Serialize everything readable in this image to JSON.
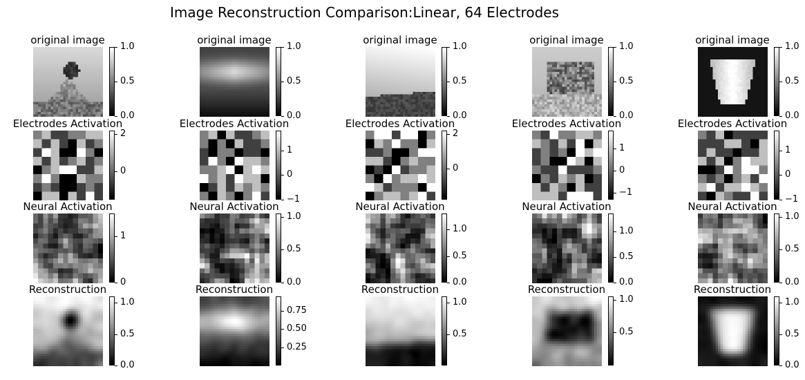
{
  "title": "Image Reconstruction Comparison:Linear, 64 Electrodes",
  "colormap": {
    "low": "#000000",
    "high": "#ffffff"
  },
  "chart_data": {
    "type": "heatmap",
    "row_titles": [
      "original image",
      "Electrodes Activation",
      "Neural Activation",
      "Reconstruction"
    ],
    "grid_sizes": [
      28,
      8,
      14,
      28
    ],
    "columns": 5,
    "panels": [
      [
        {
          "vmin": 0.0,
          "vmax": 1.0,
          "ticks": [
            0.0,
            0.5,
            1.0
          ],
          "tick_labels": [
            "0.0",
            "0.5",
            "1.0"
          ]
        },
        {
          "vmin": 0.0,
          "vmax": 1.0,
          "ticks": [
            0.0,
            0.5,
            1.0
          ],
          "tick_labels": [
            "0.0",
            "0.5",
            "1.0"
          ]
        },
        {
          "vmin": 0.0,
          "vmax": 1.0,
          "ticks": [
            0.0,
            0.5,
            1.0
          ],
          "tick_labels": [
            "0.0",
            "0.5",
            "1.0"
          ]
        },
        {
          "vmin": 0.0,
          "vmax": 1.0,
          "ticks": [
            0.0,
            0.5,
            1.0
          ],
          "tick_labels": [
            "0.0",
            "0.5",
            "1.0"
          ]
        },
        {
          "vmin": 0.0,
          "vmax": 1.0,
          "ticks": [
            0.0,
            0.5,
            1.0
          ],
          "tick_labels": [
            "0.0",
            "0.5",
            "1.0"
          ]
        }
      ],
      [
        {
          "vmin": -1.5,
          "vmax": 2.2,
          "ticks": [
            0,
            2
          ],
          "tick_labels": [
            "0",
            "2"
          ]
        },
        {
          "vmin": -1.0,
          "vmax": 1.8,
          "ticks": [
            -1,
            0,
            1
          ],
          "tick_labels": [
            "−1",
            "0",
            "1"
          ]
        },
        {
          "vmin": -1.8,
          "vmax": 2.2,
          "ticks": [
            0,
            2
          ],
          "tick_labels": [
            "0",
            "2"
          ]
        },
        {
          "vmin": -1.3,
          "vmax": 1.8,
          "ticks": [
            -1,
            0,
            1
          ],
          "tick_labels": [
            "−1",
            "0",
            "1"
          ]
        },
        {
          "vmin": -1.0,
          "vmax": 1.8,
          "ticks": [
            -1,
            0,
            1
          ],
          "tick_labels": [
            "−1",
            "0",
            "1"
          ]
        }
      ],
      [
        {
          "vmin": 0.0,
          "vmax": 1.5,
          "ticks": [
            0,
            1
          ],
          "tick_labels": [
            "0",
            "1"
          ]
        },
        {
          "vmin": 0.0,
          "vmax": 1.05,
          "ticks": [
            0.0,
            0.5,
            1.0
          ],
          "tick_labels": [
            "0.0",
            "0.5",
            "1.0"
          ]
        },
        {
          "vmin": 0.0,
          "vmax": 1.3,
          "ticks": [
            0.0,
            0.5,
            1.0
          ],
          "tick_labels": [
            "0.0",
            "0.5",
            "1.0"
          ]
        },
        {
          "vmin": 0.0,
          "vmax": 1.35,
          "ticks": [
            0.0,
            0.5,
            1.0
          ],
          "tick_labels": [
            "0.0",
            "0.5",
            "1.0"
          ]
        },
        {
          "vmin": 0.0,
          "vmax": 1.05,
          "ticks": [
            0.0,
            0.5,
            1.0
          ],
          "tick_labels": [
            "0.0",
            "0.5",
            "1.0"
          ]
        }
      ],
      [
        {
          "vmin": 0.0,
          "vmax": 1.1,
          "ticks": [
            0.0,
            0.5,
            1.0
          ],
          "tick_labels": [
            "0.0",
            "0.5",
            "1.0"
          ]
        },
        {
          "vmin": 0.0,
          "vmax": 0.95,
          "ticks": [
            0.25,
            0.5,
            0.75
          ],
          "tick_labels": [
            "0.25",
            "0.50",
            "0.75"
          ]
        },
        {
          "vmin": 0.0,
          "vmax": 1.1,
          "ticks": [
            0.5,
            1.0
          ],
          "tick_labels": [
            "0.5",
            "1.0"
          ]
        },
        {
          "vmin": 0.0,
          "vmax": 1.05,
          "ticks": [
            0.5,
            1.0
          ],
          "tick_labels": [
            "0.5",
            "1.0"
          ]
        },
        {
          "vmin": 0.0,
          "vmax": 1.1,
          "ticks": [
            0.0,
            0.5,
            1.0
          ],
          "tick_labels": [
            "0.0",
            "0.5",
            "1.0"
          ]
        }
      ]
    ]
  }
}
